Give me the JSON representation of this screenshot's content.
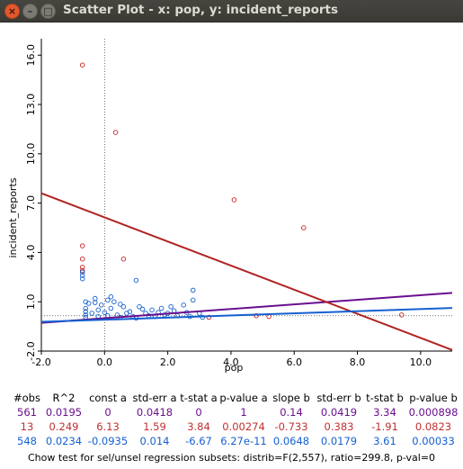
{
  "window": {
    "title": "Scatter Plot - x: pop, y: incident_reports",
    "close_glyph": "×",
    "min_glyph": "–",
    "max_glyph": "□"
  },
  "chart_data": {
    "type": "scatter",
    "xlabel": "pop",
    "ylabel": "incident_reports",
    "xlim": [
      -2.0,
      11.0
    ],
    "ylim": [
      -2.0,
      17.0
    ],
    "x_ticks": [
      -2.0,
      0.0,
      2.0,
      4.0,
      6.0,
      8.0,
      10.0
    ],
    "x_tick_labels": [
      "-2.0",
      "0.0",
      "2.0",
      "4.0",
      "6.0",
      "8.0",
      "10.0"
    ],
    "y_ticks": [
      -2.0,
      1.0,
      4.0,
      7.0,
      10.0,
      13.0,
      16.0
    ],
    "y_tick_labels": [
      "-2.0",
      "1.0",
      "4.0",
      "7.0",
      "10.0",
      "13.0",
      "16.0"
    ],
    "grid": false,
    "zero_lines": {
      "x": 0,
      "y": 0.15
    },
    "series": [
      {
        "color": "#cc2222",
        "points": [
          [
            -0.7,
            15.4
          ],
          [
            0.35,
            11.3
          ],
          [
            4.1,
            7.2
          ],
          [
            6.3,
            5.5
          ],
          [
            -0.7,
            4.4
          ],
          [
            0.6,
            3.6
          ],
          [
            -0.7,
            3.6
          ],
          [
            -0.7,
            3.1
          ],
          [
            -0.7,
            2.9
          ],
          [
            3.3,
            0.05
          ],
          [
            5.2,
            0.1
          ],
          [
            9.4,
            0.2
          ],
          [
            4.8,
            0.15
          ]
        ]
      },
      {
        "color": "#1560d0",
        "points": [
          [
            -0.7,
            2.8
          ],
          [
            -0.7,
            2.6
          ],
          [
            -0.7,
            2.4
          ],
          [
            1.0,
            2.3
          ],
          [
            2.8,
            1.7
          ],
          [
            2.8,
            1.1
          ],
          [
            2.5,
            0.8
          ],
          [
            1.8,
            0.6
          ],
          [
            0.3,
            1.0
          ],
          [
            0.1,
            1.1
          ],
          [
            -0.3,
            0.95
          ],
          [
            0.5,
            0.85
          ],
          [
            1.1,
            0.7
          ],
          [
            1.5,
            0.5
          ],
          [
            2.2,
            0.45
          ],
          [
            2.6,
            0.35
          ],
          [
            3.0,
            0.3
          ],
          [
            0.8,
            0.4
          ],
          [
            1.3,
            0.3
          ],
          [
            -0.6,
            1.0
          ],
          [
            -0.5,
            0.9
          ],
          [
            0.2,
            0.6
          ],
          [
            -0.2,
            0.5
          ],
          [
            0.7,
            0.3
          ],
          [
            1.9,
            0.2
          ],
          [
            2.3,
            0.15
          ],
          [
            0.4,
            0.2
          ],
          [
            -0.4,
            0.3
          ],
          [
            1.6,
            0.1
          ],
          [
            0.9,
            0.1
          ],
          [
            2.7,
            0.1
          ],
          [
            3.1,
            0.05
          ],
          [
            -0.1,
            0.8
          ],
          [
            0.6,
            0.7
          ],
          [
            1.2,
            0.55
          ],
          [
            0.0,
            0.35
          ],
          [
            -0.6,
            0.6
          ],
          [
            -0.6,
            0.4
          ],
          [
            -0.6,
            0.2
          ],
          [
            -0.6,
            0.05
          ],
          [
            0.5,
            0.05
          ],
          [
            1.4,
            0.15
          ],
          [
            2.0,
            0.3
          ],
          [
            0.2,
            1.3
          ],
          [
            -0.3,
            1.2
          ],
          [
            2.1,
            0.7
          ],
          [
            1.7,
            0.35
          ],
          [
            0.1,
            0.15
          ],
          [
            -0.2,
            0.1
          ],
          [
            1.0,
            0.0
          ]
        ]
      }
    ],
    "regression_lines": [
      {
        "name": "all",
        "color": "#6a0f8e",
        "intercept": 0,
        "slope": 0.14
      },
      {
        "name": "sel",
        "color": "#b02323",
        "intercept": 6.13,
        "slope": -0.733
      },
      {
        "name": "unsel",
        "color": "#1560d0",
        "intercept": -0.0935,
        "slope": 0.0648
      }
    ]
  },
  "stats": {
    "headers": [
      "#obs",
      "R^2",
      "const a",
      "std-err a",
      "t-stat a",
      "p-value a",
      "slope b",
      "std-err b",
      "t-stat b",
      "p-value b"
    ],
    "rows": [
      {
        "color": "#6a0f8e",
        "cells": [
          "561",
          "0.0195",
          "0",
          "0.0418",
          "0",
          "1",
          "0.14",
          "0.0419",
          "3.34",
          "0.000898"
        ]
      },
      {
        "color": "#c03030",
        "cells": [
          "13",
          "0.249",
          "6.13",
          "1.59",
          "3.84",
          "0.00274",
          "-0.733",
          "0.383",
          "-1.91",
          "0.0823"
        ]
      },
      {
        "color": "#1560d0",
        "cells": [
          "548",
          "0.0234",
          "-0.0935",
          "0.014",
          "-6.67",
          "6.27e-11",
          "0.0648",
          "0.0179",
          "3.61",
          "0.00033"
        ]
      }
    ],
    "chow": "Chow test for sel/unsel regression subsets: distrib=F(2,557), ratio=299.8, p-val=0"
  }
}
